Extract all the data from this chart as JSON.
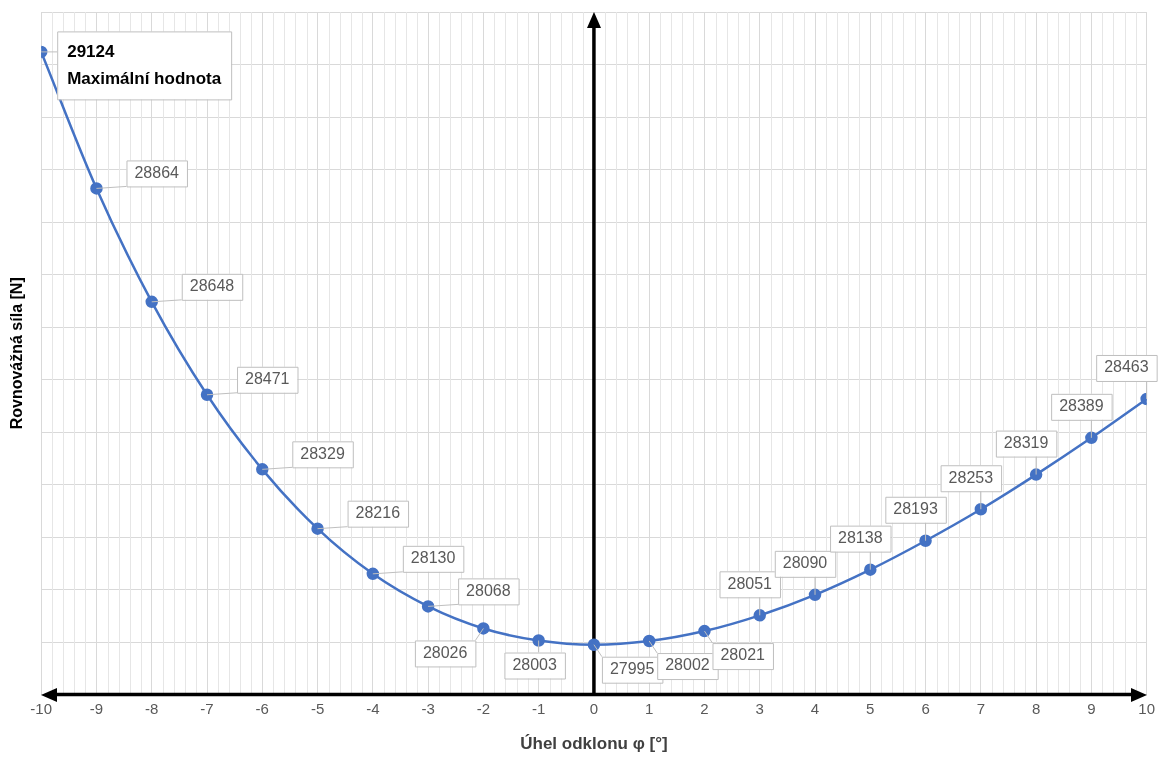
{
  "chart_data": {
    "type": "line",
    "xlabel": "Úhel odklonu φ [°]",
    "ylabel": "Rovnovážná síla [N]",
    "x": [
      -10,
      -9,
      -8,
      -7,
      -6,
      -5,
      -4,
      -3,
      -2,
      -1,
      0,
      1,
      2,
      3,
      4,
      5,
      6,
      7,
      8,
      9,
      10
    ],
    "series": [
      {
        "color": "#4472c4",
        "values": [
          29124,
          28864,
          28648,
          28471,
          28329,
          28216,
          28130,
          28068,
          28026,
          28003,
          27995,
          28002,
          28021,
          28051,
          28090,
          28138,
          28193,
          28253,
          28319,
          28389,
          28463
        ]
      }
    ],
    "xlim": [
      -10,
      10
    ],
    "xticks": [
      -10,
      -9,
      -8,
      -7,
      -6,
      -5,
      -4,
      -3,
      -2,
      -1,
      0,
      1,
      2,
      3,
      4,
      5,
      6,
      7,
      8,
      9,
      10
    ],
    "ylim": [
      27900,
      29200
    ],
    "yticks": [
      {
        "value": 27900,
        "label": null
      },
      {
        "value": 28000,
        "label": null
      },
      {
        "value": 28100,
        "label": null
      },
      {
        "value": 28200,
        "label": null
      },
      {
        "value": 28300,
        "label": null
      },
      {
        "value": 28400,
        "label": null
      },
      {
        "value": 28500,
        "label": null
      },
      {
        "value": 28600,
        "label": null
      },
      {
        "value": 28700,
        "label": null
      },
      {
        "value": 28800,
        "label": null
      },
      {
        "value": 28900,
        "label": null
      },
      {
        "value": 29000,
        "label": null
      },
      {
        "value": 29100,
        "label": null
      },
      {
        "value": 29200,
        "label": null
      }
    ],
    "tick_labels": "x",
    "grid": true,
    "legend": false,
    "marker": "circle",
    "line_style": "solid",
    "data_labels": true,
    "annotations": [
      {
        "text": "Maximální hodnota",
        "x": -10,
        "y": 29124
      }
    ]
  }
}
